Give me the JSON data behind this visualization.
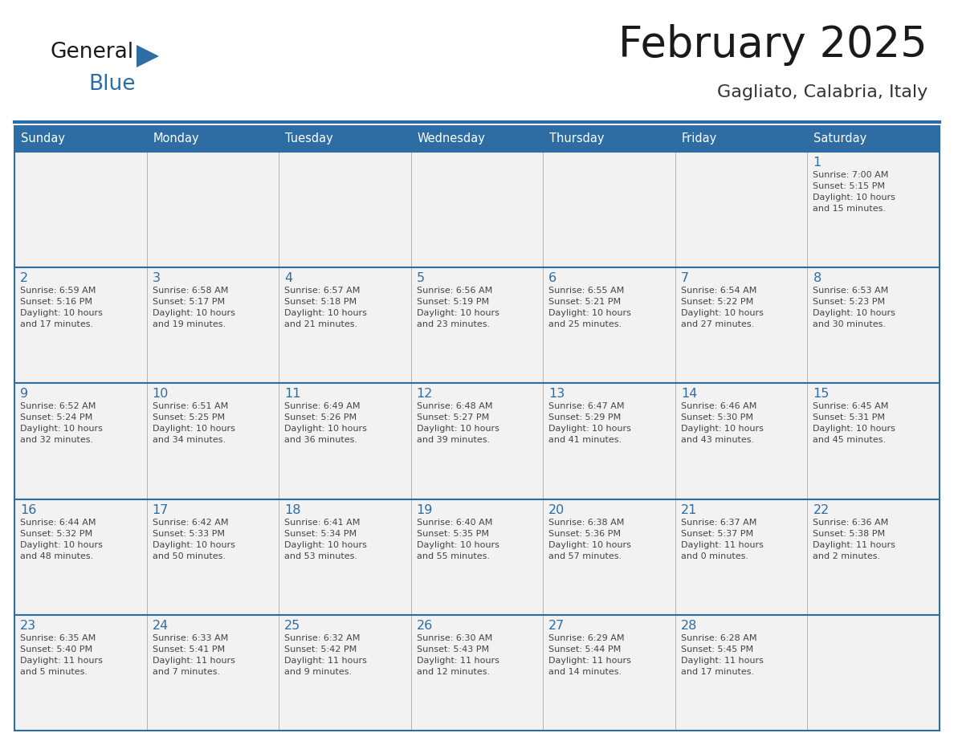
{
  "title": "February 2025",
  "subtitle": "Gagliato, Calabria, Italy",
  "header_bg": "#2E6DA4",
  "header_text_color": "#FFFFFF",
  "cell_bg": "#f2f2f2",
  "day_number_color": "#2E6DA4",
  "text_color": "#555555",
  "border_color": "#2E6DA4",
  "days_of_week": [
    "Sunday",
    "Monday",
    "Tuesday",
    "Wednesday",
    "Thursday",
    "Friday",
    "Saturday"
  ],
  "weeks": [
    [
      {
        "day": "",
        "info": ""
      },
      {
        "day": "",
        "info": ""
      },
      {
        "day": "",
        "info": ""
      },
      {
        "day": "",
        "info": ""
      },
      {
        "day": "",
        "info": ""
      },
      {
        "day": "",
        "info": ""
      },
      {
        "day": "1",
        "info": "Sunrise: 7:00 AM\nSunset: 5:15 PM\nDaylight: 10 hours\nand 15 minutes."
      }
    ],
    [
      {
        "day": "2",
        "info": "Sunrise: 6:59 AM\nSunset: 5:16 PM\nDaylight: 10 hours\nand 17 minutes."
      },
      {
        "day": "3",
        "info": "Sunrise: 6:58 AM\nSunset: 5:17 PM\nDaylight: 10 hours\nand 19 minutes."
      },
      {
        "day": "4",
        "info": "Sunrise: 6:57 AM\nSunset: 5:18 PM\nDaylight: 10 hours\nand 21 minutes."
      },
      {
        "day": "5",
        "info": "Sunrise: 6:56 AM\nSunset: 5:19 PM\nDaylight: 10 hours\nand 23 minutes."
      },
      {
        "day": "6",
        "info": "Sunrise: 6:55 AM\nSunset: 5:21 PM\nDaylight: 10 hours\nand 25 minutes."
      },
      {
        "day": "7",
        "info": "Sunrise: 6:54 AM\nSunset: 5:22 PM\nDaylight: 10 hours\nand 27 minutes."
      },
      {
        "day": "8",
        "info": "Sunrise: 6:53 AM\nSunset: 5:23 PM\nDaylight: 10 hours\nand 30 minutes."
      }
    ],
    [
      {
        "day": "9",
        "info": "Sunrise: 6:52 AM\nSunset: 5:24 PM\nDaylight: 10 hours\nand 32 minutes."
      },
      {
        "day": "10",
        "info": "Sunrise: 6:51 AM\nSunset: 5:25 PM\nDaylight: 10 hours\nand 34 minutes."
      },
      {
        "day": "11",
        "info": "Sunrise: 6:49 AM\nSunset: 5:26 PM\nDaylight: 10 hours\nand 36 minutes."
      },
      {
        "day": "12",
        "info": "Sunrise: 6:48 AM\nSunset: 5:27 PM\nDaylight: 10 hours\nand 39 minutes."
      },
      {
        "day": "13",
        "info": "Sunrise: 6:47 AM\nSunset: 5:29 PM\nDaylight: 10 hours\nand 41 minutes."
      },
      {
        "day": "14",
        "info": "Sunrise: 6:46 AM\nSunset: 5:30 PM\nDaylight: 10 hours\nand 43 minutes."
      },
      {
        "day": "15",
        "info": "Sunrise: 6:45 AM\nSunset: 5:31 PM\nDaylight: 10 hours\nand 45 minutes."
      }
    ],
    [
      {
        "day": "16",
        "info": "Sunrise: 6:44 AM\nSunset: 5:32 PM\nDaylight: 10 hours\nand 48 minutes."
      },
      {
        "day": "17",
        "info": "Sunrise: 6:42 AM\nSunset: 5:33 PM\nDaylight: 10 hours\nand 50 minutes."
      },
      {
        "day": "18",
        "info": "Sunrise: 6:41 AM\nSunset: 5:34 PM\nDaylight: 10 hours\nand 53 minutes."
      },
      {
        "day": "19",
        "info": "Sunrise: 6:40 AM\nSunset: 5:35 PM\nDaylight: 10 hours\nand 55 minutes."
      },
      {
        "day": "20",
        "info": "Sunrise: 6:38 AM\nSunset: 5:36 PM\nDaylight: 10 hours\nand 57 minutes."
      },
      {
        "day": "21",
        "info": "Sunrise: 6:37 AM\nSunset: 5:37 PM\nDaylight: 11 hours\nand 0 minutes."
      },
      {
        "day": "22",
        "info": "Sunrise: 6:36 AM\nSunset: 5:38 PM\nDaylight: 11 hours\nand 2 minutes."
      }
    ],
    [
      {
        "day": "23",
        "info": "Sunrise: 6:35 AM\nSunset: 5:40 PM\nDaylight: 11 hours\nand 5 minutes."
      },
      {
        "day": "24",
        "info": "Sunrise: 6:33 AM\nSunset: 5:41 PM\nDaylight: 11 hours\nand 7 minutes."
      },
      {
        "day": "25",
        "info": "Sunrise: 6:32 AM\nSunset: 5:42 PM\nDaylight: 11 hours\nand 9 minutes."
      },
      {
        "day": "26",
        "info": "Sunrise: 6:30 AM\nSunset: 5:43 PM\nDaylight: 11 hours\nand 12 minutes."
      },
      {
        "day": "27",
        "info": "Sunrise: 6:29 AM\nSunset: 5:44 PM\nDaylight: 11 hours\nand 14 minutes."
      },
      {
        "day": "28",
        "info": "Sunrise: 6:28 AM\nSunset: 5:45 PM\nDaylight: 11 hours\nand 17 minutes."
      },
      {
        "day": "",
        "info": ""
      }
    ]
  ],
  "logo_general_color": "#1a1a1a",
  "logo_blue_color": "#2E6DA4",
  "logo_triangle_color": "#2E6DA4"
}
